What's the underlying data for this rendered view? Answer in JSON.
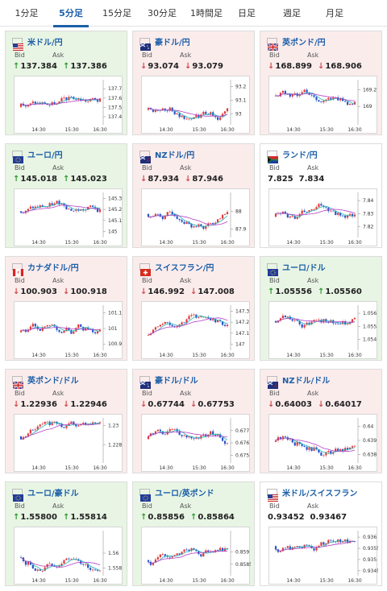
{
  "tabs": [
    {
      "label": "1分足",
      "active": false
    },
    {
      "label": "5分足",
      "active": true
    },
    {
      "label": "15分足",
      "active": false
    },
    {
      "label": "30分足",
      "active": false
    },
    {
      "label": "1時間足",
      "active": false
    },
    {
      "label": "日足",
      "active": false
    },
    {
      "label": "週足",
      "active": false
    },
    {
      "label": "月足",
      "active": false
    }
  ],
  "labels": {
    "bid": "Bid",
    "ask": "Ask"
  },
  "colors": {
    "up": "#2e9a2e",
    "down": "#d24a4a",
    "candle_up": "#e23b3b",
    "candle_down": "#2557c9",
    "ma_short": "#23b5b5",
    "ma_long": "#b43ec8",
    "link": "#1c5fa8"
  },
  "cards": [
    {
      "pair": "米ドル/円",
      "flag": "us-flag-icon",
      "trend": "up",
      "bid": "137.384",
      "ask": "137.386",
      "direction": "up",
      "chart": {
        "yticks": [
          "137.7",
          "137.6",
          "137.5",
          "137.4"
        ],
        "ylim": [
          137.33,
          137.78
        ],
        "xticks": [
          "14:30",
          "15:30",
          "16:30"
        ]
      }
    },
    {
      "pair": "豪ドル/円",
      "flag": "au-flag-icon",
      "trend": "down",
      "bid": "93.074",
      "ask": "93.079",
      "direction": "down",
      "chart": {
        "yticks": [
          "93.2",
          "93.1",
          "93"
        ],
        "ylim": [
          92.93,
          93.24
        ],
        "xticks": [
          "14:30",
          "15:30",
          "16:30"
        ]
      }
    },
    {
      "pair": "英ポンド/円",
      "flag": "gb-flag-icon",
      "trend": "down",
      "bid": "168.899",
      "ask": "168.906",
      "direction": "down",
      "chart": {
        "yticks": [
          "169.2",
          "169"
        ],
        "ylim": [
          168.8,
          169.3
        ],
        "xticks": [
          "14:30",
          "15:30",
          "16:30"
        ]
      }
    },
    {
      "pair": "ユーロ/円",
      "flag": "eu-flag-icon",
      "trend": "up",
      "bid": "145.018",
      "ask": "145.023",
      "direction": "up",
      "chart": {
        "yticks": [
          "145.3",
          "145.2",
          "145.1",
          "145"
        ],
        "ylim": [
          144.96,
          145.34
        ],
        "xticks": [
          "14:30",
          "15:30",
          "16:30"
        ]
      }
    },
    {
      "pair": "NZドル/円",
      "flag": "nz-flag-icon",
      "trend": "down",
      "bid": "87.934",
      "ask": "87.946",
      "direction": "down",
      "chart": {
        "yticks": [
          "88",
          "87.9"
        ],
        "ylim": [
          87.86,
          88.1
        ],
        "xticks": [
          "14:30",
          "15:30",
          "16:30"
        ]
      }
    },
    {
      "pair": "ランド/円",
      "flag": "za-flag-icon",
      "trend": "flat",
      "bid": "7.825",
      "ask": "7.834",
      "direction": "none",
      "chart": {
        "yticks": [
          "7.84",
          "7.83",
          "7.82"
        ],
        "ylim": [
          7.813,
          7.845
        ],
        "xticks": [
          "14:30",
          "15:30",
          "16:30"
        ]
      }
    },
    {
      "pair": "カナダドル/円",
      "flag": "ca-flag-icon",
      "trend": "down",
      "bid": "100.903",
      "ask": "100.918",
      "direction": "down",
      "chart": {
        "yticks": [
          "101.1",
          "101",
          "100.9"
        ],
        "ylim": [
          100.87,
          101.14
        ],
        "xticks": [
          "14:30",
          "15:30",
          "16:30"
        ]
      }
    },
    {
      "pair": "スイスフラン/円",
      "flag": "ch-flag-icon",
      "trend": "down",
      "bid": "146.992",
      "ask": "147.008",
      "direction": "down",
      "chart": {
        "yticks": [
          "147.3",
          "147.2",
          "147.1",
          "147"
        ],
        "ylim": [
          146.96,
          147.34
        ],
        "xticks": [
          "14:30",
          "15:30",
          "16:30"
        ]
      }
    },
    {
      "pair": "ユーロ/ドル",
      "flag": "eu-flag-icon",
      "trend": "up",
      "bid": "1.05556",
      "ask": "1.05560",
      "direction": "up",
      "chart": {
        "yticks": [
          "1.056",
          "1.055",
          "1.054"
        ],
        "ylim": [
          1.0533,
          1.0565
        ],
        "xticks": [
          "14:30",
          "15:30",
          "16:30"
        ]
      }
    },
    {
      "pair": "英ポンド/ドル",
      "flag": "gb-flag-icon",
      "trend": "down",
      "bid": "1.22936",
      "ask": "1.22946",
      "direction": "down",
      "chart": {
        "yticks": [
          "1.23",
          "1.228"
        ],
        "ylim": [
          1.2263,
          1.2306
        ],
        "xticks": [
          "14:30",
          "15:30",
          "16:30"
        ]
      }
    },
    {
      "pair": "豪ドル/ドル",
      "flag": "au-flag-icon",
      "trend": "down",
      "bid": "0.67744",
      "ask": "0.67753",
      "direction": "down",
      "chart": {
        "yticks": [
          "0.677",
          "0.676",
          "0.675"
        ],
        "ylim": [
          0.6745,
          0.6779
        ],
        "xticks": [
          "14:30",
          "15:30",
          "16:30"
        ]
      }
    },
    {
      "pair": "NZドル/ドル",
      "flag": "nz-flag-icon",
      "trend": "down",
      "bid": "0.64003",
      "ask": "0.64017",
      "direction": "down",
      "chart": {
        "yticks": [
          "0.64",
          "0.639",
          "0.638"
        ],
        "ylim": [
          0.6375,
          0.6405
        ],
        "xticks": [
          "14:30",
          "15:30",
          "16:30"
        ]
      }
    },
    {
      "pair": "ユーロ/豪ドル",
      "flag": "eu-flag-icon",
      "trend": "up",
      "bid": "1.55800",
      "ask": "1.55814",
      "direction": "up",
      "chart": {
        "yticks": [
          "1.56",
          "1.558"
        ],
        "ylim": [
          1.5572,
          1.5628
        ],
        "xticks": [
          "14:30",
          "15:30",
          "16:30"
        ]
      }
    },
    {
      "pair": "ユーロ/英ポンド",
      "flag": "eu-flag-icon",
      "trend": "up",
      "bid": "0.85856",
      "ask": "0.85864",
      "direction": "up",
      "chart": {
        "yticks": [
          "0.859",
          "0.8585"
        ],
        "ylim": [
          0.8581,
          0.8598
        ],
        "xticks": [
          "14:30",
          "15:30",
          "16:30"
        ]
      }
    },
    {
      "pair": "米ドル/スイスフラン",
      "flag": "us-flag-icon",
      "trend": "flat",
      "bid": "0.93452",
      "ask": "0.93467",
      "direction": "none",
      "chart": {
        "yticks": [
          "0.936",
          "0.9355",
          "0.935",
          "0.9345"
        ],
        "ylim": [
          0.93435,
          0.93622
        ],
        "xticks": [
          "14:30",
          "15:30",
          "16:30"
        ]
      }
    }
  ]
}
